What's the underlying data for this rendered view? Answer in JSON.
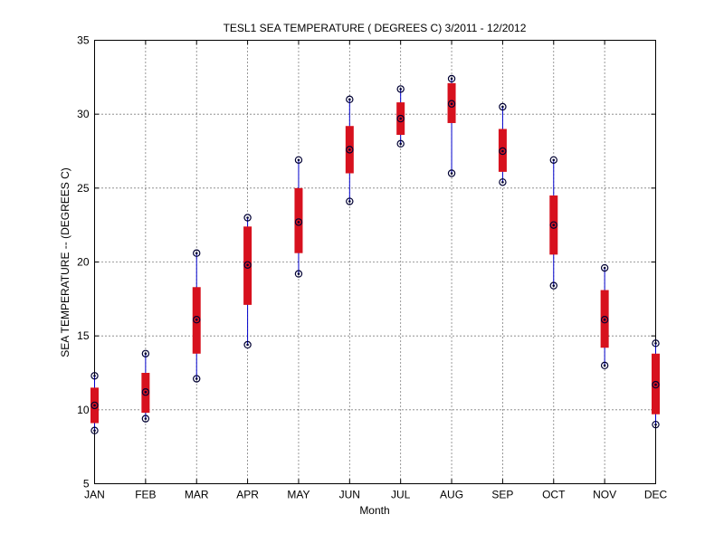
{
  "chart_data": {
    "type": "box",
    "title": "TESL1  SEA TEMPERATURE ( DEGREES C) 3/2011 - 12/2012",
    "xlabel": "Month",
    "ylabel": "SEA TEMPERATURE -- (DEGREES C)",
    "ylim": [
      5,
      35
    ],
    "yticks": [
      "5",
      "10",
      "15",
      "20",
      "25",
      "30",
      "35"
    ],
    "grid": true,
    "colors": {
      "box": "#d7111e",
      "whisker": "#0000cc",
      "marker": "#000033"
    },
    "categories": [
      "JAN",
      "FEB",
      "MAR",
      "APR",
      "MAY",
      "JUN",
      "JUL",
      "AUG",
      "SEP",
      "OCT",
      "NOV",
      "DEC"
    ],
    "series": [
      {
        "min": [
          8.6,
          9.4,
          12.1,
          14.4,
          19.2,
          24.1,
          28.0,
          26.0,
          25.4,
          18.4,
          13.0,
          9.0
        ],
        "q1": [
          9.1,
          9.8,
          13.8,
          17.1,
          20.6,
          26.0,
          28.6,
          29.4,
          26.1,
          20.5,
          14.2,
          9.7
        ],
        "median": [
          10.3,
          11.2,
          16.1,
          19.8,
          22.7,
          27.6,
          29.7,
          30.7,
          27.5,
          22.5,
          16.1,
          11.7
        ],
        "q3": [
          11.5,
          12.5,
          18.3,
          22.4,
          25.0,
          29.2,
          30.8,
          32.1,
          29.0,
          24.5,
          18.1,
          13.8
        ],
        "max": [
          12.3,
          13.8,
          20.6,
          23.0,
          26.9,
          31.0,
          31.7,
          32.4,
          30.5,
          26.9,
          19.6,
          14.5
        ]
      }
    ]
  }
}
